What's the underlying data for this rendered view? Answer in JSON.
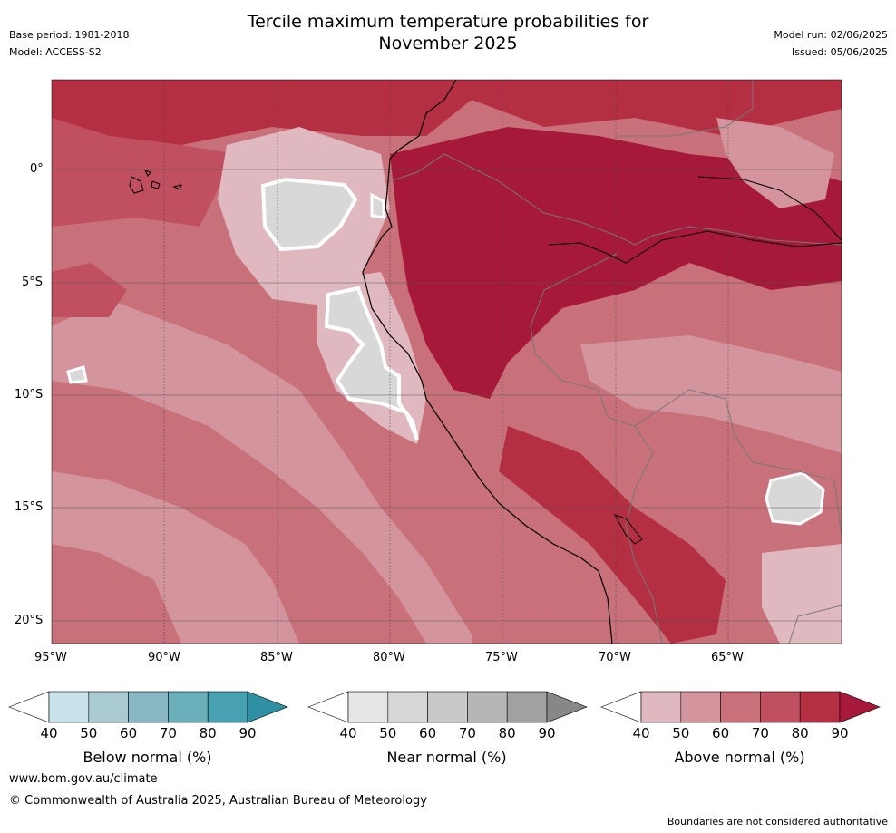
{
  "header": {
    "base_period": "Base period: 1981-2018",
    "model": "Model: ACCESS-S2",
    "title_line1": "Tercile maximum temperature probabilities for",
    "title_line2": "November 2025",
    "model_run": "Model run: 02/06/2025",
    "issued": "Issued: 05/06/2025"
  },
  "axes": {
    "lat_labels": [
      "0°",
      "5°S",
      "10°S",
      "15°S",
      "20°S"
    ],
    "lon_labels": [
      "95°W",
      "90°W",
      "85°W",
      "80°W",
      "75°W",
      "70°W",
      "65°W"
    ]
  },
  "colorbars": [
    {
      "label": "Below normal (%)",
      "ticks": [
        "40",
        "50",
        "60",
        "70",
        "80",
        "90"
      ],
      "colors": [
        "#ffffff",
        "#c8e3e9",
        "#a9cad1",
        "#8ab7c4",
        "#6aaeb9",
        "#47a1b0",
        "#2f8fa3"
      ]
    },
    {
      "label": "Near normal (%)",
      "ticks": [
        "40",
        "50",
        "60",
        "70",
        "80",
        "90"
      ],
      "colors": [
        "#ffffff",
        "#e6e6e6",
        "#d7d7d7",
        "#c9c9c9",
        "#b6b6b6",
        "#a1a1a1",
        "#878787"
      ]
    },
    {
      "label": "Above normal (%)",
      "ticks": [
        "40",
        "50",
        "60",
        "70",
        "80",
        "90"
      ],
      "colors": [
        "#ffffff",
        "#e0b8bf",
        "#d4949d",
        "#c9717b",
        "#c0505f",
        "#b52f42",
        "#a7193a"
      ]
    }
  ],
  "footer": {
    "website": "www.bom.gov.au/climate",
    "copyright": "© Commonwealth of Australia 2025, Australian Bureau of Meteorology",
    "disclaimer": "Boundaries are not considered authoritative"
  },
  "colors": {
    "above_50": "#e0b8bf",
    "above_60": "#d4949d",
    "above_70": "#c9717b",
    "above_80": "#c0505f",
    "above_90": "#b52f42",
    "above_90p": "#a7193a",
    "near_normal": "#d8d8d8"
  }
}
